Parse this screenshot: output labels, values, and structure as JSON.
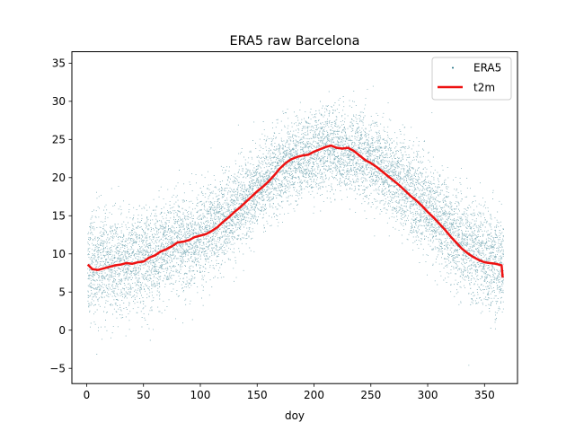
{
  "chart_data": {
    "type": "scatter",
    "title": "ERA5 raw Barcelona",
    "xlabel": "doy",
    "ylabel": "",
    "xlim": [
      -13,
      379
    ],
    "ylim": [
      -7,
      36.5
    ],
    "xticks": [
      0,
      50,
      100,
      150,
      200,
      250,
      300,
      350
    ],
    "yticks": [
      -5,
      0,
      5,
      10,
      15,
      20,
      25,
      30,
      35
    ],
    "grid": false,
    "legend": "top-right",
    "series": [
      {
        "name": "ERA5",
        "kind": "scatter",
        "color": "#1a6e82",
        "marker": "dot",
        "x": "doy 1-366",
        "mean": [
          [
            0,
            8.5
          ],
          [
            25,
            8.4
          ],
          [
            50,
            9.0
          ],
          [
            75,
            10.8
          ],
          [
            100,
            12.2
          ],
          [
            125,
            14.8
          ],
          [
            150,
            18.5
          ],
          [
            175,
            21.8
          ],
          [
            200,
            23.2
          ],
          [
            215,
            23.8
          ],
          [
            240,
            23.0
          ],
          [
            265,
            20.8
          ],
          [
            290,
            17.5
          ],
          [
            315,
            13.5
          ],
          [
            340,
            10.5
          ],
          [
            366,
            8.0
          ]
        ],
        "spread": [
          [
            0,
            5.2
          ],
          [
            60,
            5.0
          ],
          [
            120,
            4.6
          ],
          [
            180,
            4.0
          ],
          [
            215,
            4.2
          ],
          [
            270,
            4.4
          ],
          [
            330,
            5.0
          ],
          [
            366,
            5.2
          ]
        ]
      },
      {
        "name": "t2m",
        "kind": "line",
        "color": "#ee1111",
        "x": [
          1,
          5,
          10,
          15,
          20,
          25,
          30,
          35,
          40,
          45,
          50,
          55,
          60,
          65,
          70,
          75,
          80,
          85,
          90,
          95,
          100,
          105,
          110,
          115,
          120,
          125,
          130,
          135,
          140,
          145,
          150,
          155,
          160,
          165,
          170,
          175,
          180,
          185,
          190,
          195,
          200,
          205,
          210,
          215,
          220,
          225,
          230,
          235,
          240,
          245,
          250,
          255,
          260,
          265,
          270,
          275,
          280,
          285,
          290,
          295,
          300,
          305,
          310,
          315,
          320,
          325,
          330,
          335,
          340,
          345,
          350,
          355,
          360,
          365,
          366
        ],
        "y": [
          8.6,
          8.0,
          7.9,
          8.1,
          8.3,
          8.5,
          8.6,
          8.8,
          8.7,
          8.9,
          9.0,
          9.5,
          9.8,
          10.3,
          10.6,
          11.0,
          11.5,
          11.6,
          11.8,
          12.2,
          12.4,
          12.6,
          13.0,
          13.5,
          14.2,
          14.8,
          15.5,
          16.1,
          16.8,
          17.5,
          18.2,
          18.8,
          19.5,
          20.3,
          21.2,
          21.9,
          22.4,
          22.7,
          22.9,
          23.0,
          23.4,
          23.7,
          24.0,
          24.2,
          23.9,
          23.8,
          23.9,
          23.5,
          22.9,
          22.3,
          21.9,
          21.4,
          20.8,
          20.2,
          19.6,
          19.0,
          18.3,
          17.6,
          17.0,
          16.3,
          15.5,
          14.8,
          14.0,
          13.2,
          12.3,
          11.5,
          10.7,
          10.1,
          9.6,
          9.2,
          8.9,
          8.8,
          8.7,
          8.5,
          6.9
        ]
      }
    ]
  }
}
